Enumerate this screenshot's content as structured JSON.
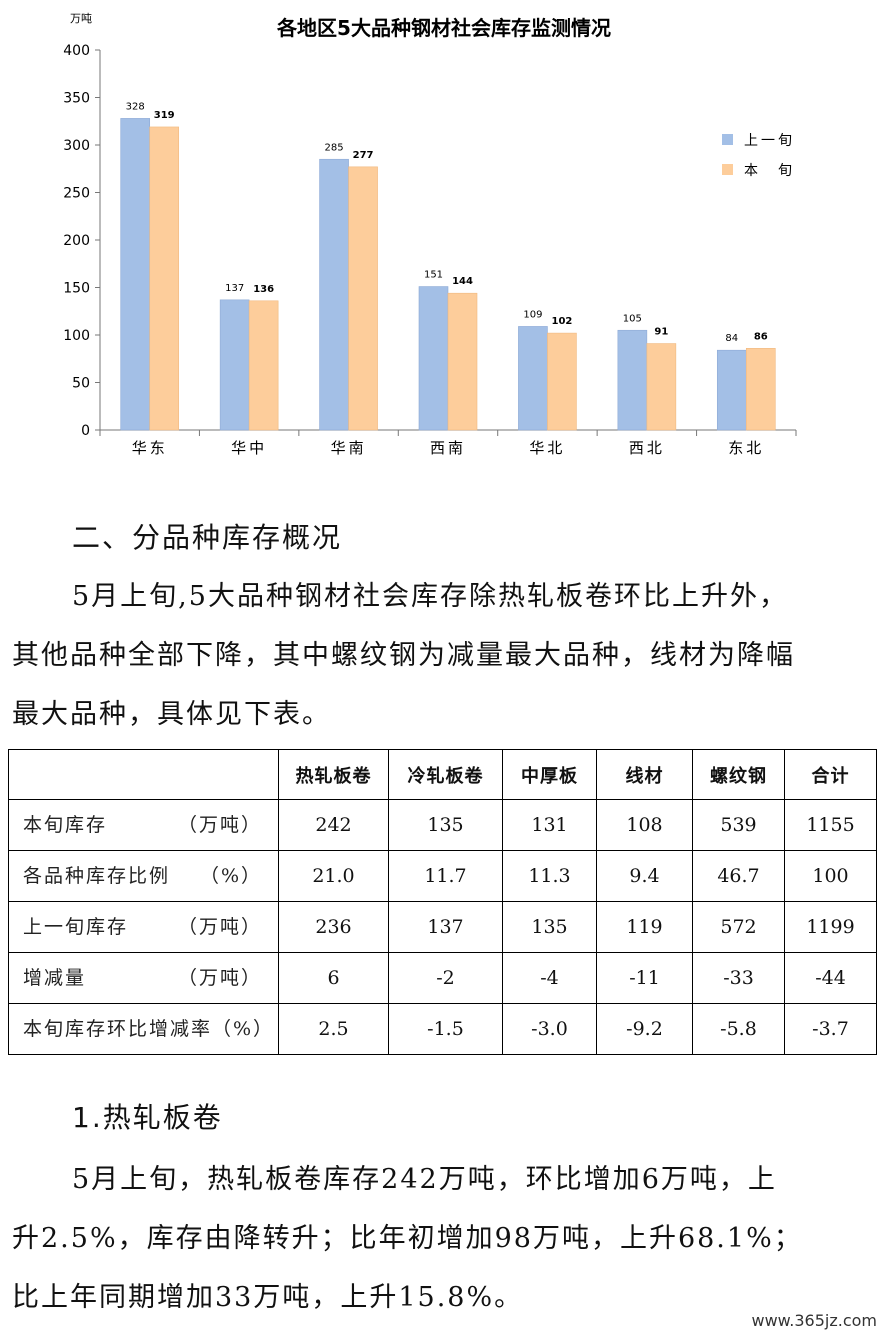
{
  "chart_data": {
    "type": "bar",
    "title": "各地区5大品种钢材社会库存监测情况",
    "ylabel": "万吨",
    "ylim": [
      0,
      400
    ],
    "yticks": [
      0,
      50,
      100,
      150,
      200,
      250,
      300,
      350,
      400
    ],
    "categories": [
      "华东",
      "华中",
      "华南",
      "西南",
      "华北",
      "西北",
      "东北"
    ],
    "series": [
      {
        "name": "上一旬",
        "values": [
          328,
          137,
          285,
          151,
          109,
          105,
          84
        ],
        "color": "#a3bfe6"
      },
      {
        "name": "本　旬",
        "values": [
          319,
          136,
          277,
          144,
          102,
          91,
          86
        ],
        "color": "#fdcd9b"
      }
    ],
    "legend": "right",
    "grid": false
  },
  "section2": {
    "heading": "二、分品种库存概况",
    "lines": [
      "5月上旬,5大品种钢材社会库存除热轧板卷环比上升外，",
      "其他品种全部下降，其中螺纹钢为减量最大品种，线材为降幅",
      "最大品种，具体见下表。"
    ]
  },
  "table": {
    "headers": [
      "热轧板卷",
      "冷轧板卷",
      "中厚板",
      "线材",
      "螺纹钢",
      "合计"
    ],
    "rows": [
      {
        "label": "本旬库存",
        "unit": "（万吨）",
        "values": [
          "242",
          "135",
          "131",
          "108",
          "539",
          "1155"
        ]
      },
      {
        "label": "各品种库存比例",
        "unit": "（%）",
        "values": [
          "21.0",
          "11.7",
          "11.3",
          "9.4",
          "46.7",
          "100"
        ]
      },
      {
        "label": "上一旬库存",
        "unit": "（万吨）",
        "values": [
          "236",
          "137",
          "135",
          "119",
          "572",
          "1199"
        ]
      },
      {
        "label": "增减量",
        "unit": "（万吨）",
        "values": [
          "6",
          "-2",
          "-4",
          "-11",
          "-33",
          "-44"
        ]
      },
      {
        "label": "本旬库存环比增减率（%）",
        "unit": "",
        "values": [
          "2.5",
          "-1.5",
          "-3.0",
          "-9.2",
          "-5.8",
          "-3.7"
        ]
      }
    ]
  },
  "section3": {
    "heading": "1.热轧板卷",
    "lines": [
      "5月上旬，热轧板卷库存242万吨，环比增加6万吨，上",
      "升2.5%，库存由降转升；比年初增加98万吨，上升68.1%；",
      "比上年同期增加33万吨，上升15.8%。"
    ]
  },
  "watermark": "www.365jz.com"
}
